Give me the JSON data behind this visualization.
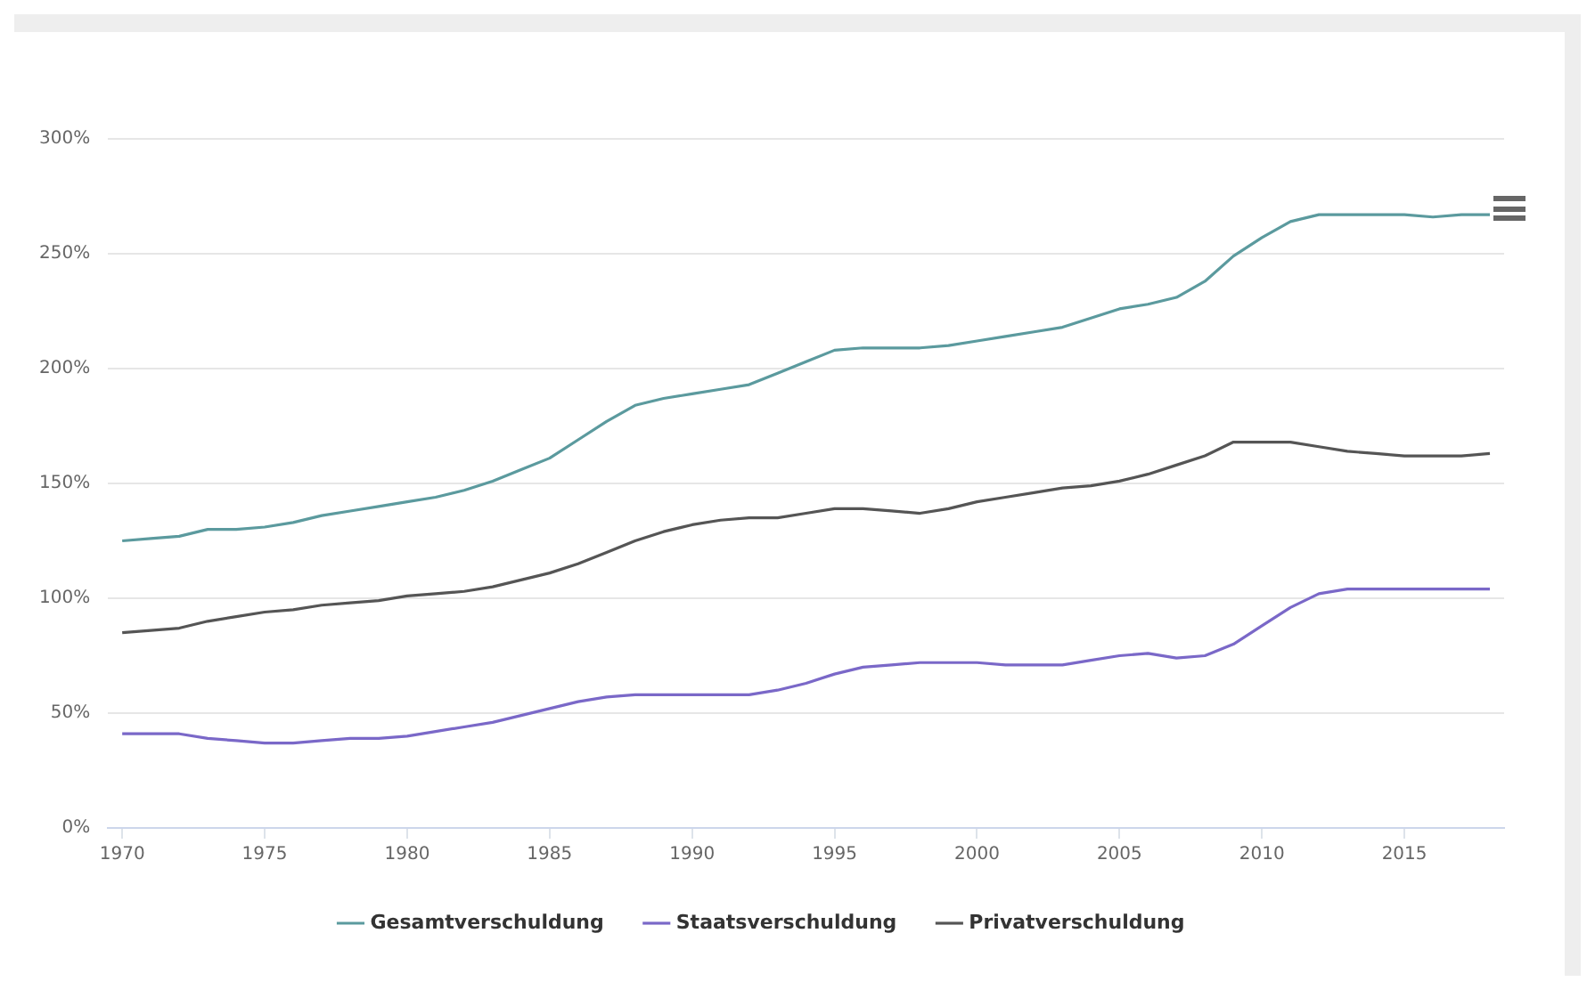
{
  "chart_data": {
    "type": "line",
    "x": [
      1970,
      1971,
      1972,
      1973,
      1974,
      1975,
      1976,
      1977,
      1978,
      1979,
      1980,
      1981,
      1982,
      1983,
      1984,
      1985,
      1986,
      1987,
      1988,
      1989,
      1990,
      1991,
      1992,
      1993,
      1994,
      1995,
      1996,
      1997,
      1998,
      1999,
      2000,
      2001,
      2002,
      2003,
      2004,
      2005,
      2006,
      2007,
      2008,
      2009,
      2010,
      2011,
      2012,
      2013,
      2014,
      2015,
      2016,
      2017,
      2018
    ],
    "series": [
      {
        "name": "Gesamtverschuldung",
        "color": "#5b9a9e",
        "values": [
          125,
          126,
          127,
          130,
          130,
          131,
          133,
          136,
          138,
          140,
          142,
          144,
          147,
          151,
          156,
          161,
          169,
          177,
          184,
          187,
          189,
          191,
          193,
          198,
          203,
          208,
          209,
          209,
          209,
          210,
          212,
          214,
          216,
          218,
          222,
          226,
          228,
          231,
          238,
          249,
          257,
          264,
          267,
          267,
          267,
          267,
          266,
          267,
          267
        ]
      },
      {
        "name": "Staatsverschuldung",
        "color": "#7a68c8",
        "values": [
          41,
          41,
          41,
          39,
          38,
          37,
          37,
          38,
          39,
          39,
          40,
          42,
          44,
          46,
          49,
          52,
          55,
          57,
          58,
          58,
          58,
          58,
          58,
          60,
          63,
          67,
          70,
          71,
          72,
          72,
          72,
          71,
          71,
          71,
          73,
          75,
          76,
          74,
          75,
          80,
          88,
          96,
          102,
          104,
          104,
          104,
          104,
          104,
          104
        ]
      },
      {
        "name": "Privatverschuldung",
        "color": "#555555",
        "values": [
          85,
          86,
          87,
          90,
          92,
          94,
          95,
          97,
          98,
          99,
          101,
          102,
          103,
          105,
          108,
          111,
          115,
          120,
          125,
          129,
          132,
          134,
          135,
          135,
          137,
          139,
          139,
          138,
          137,
          139,
          142,
          144,
          146,
          148,
          149,
          151,
          154,
          158,
          162,
          168,
          168,
          168,
          166,
          164,
          163,
          162,
          162,
          162,
          163
        ]
      }
    ],
    "xlim": [
      1969.5,
      2018.5
    ],
    "xticks": [
      1970,
      1975,
      1980,
      1985,
      1990,
      1995,
      2000,
      2005,
      2010,
      2015
    ],
    "ylim": [
      0,
      300
    ],
    "yticks": [
      {
        "value": 0,
        "label": "0%"
      },
      {
        "value": 50,
        "label": "50%"
      },
      {
        "value": 100,
        "label": "100%"
      },
      {
        "value": 150,
        "label": "150%"
      },
      {
        "value": 200,
        "label": "200%"
      },
      {
        "value": 250,
        "label": "250%"
      },
      {
        "value": 300,
        "label": "300%"
      }
    ],
    "grid": "y",
    "legend": "bottom",
    "marker": "none",
    "line_style": "solid"
  }
}
